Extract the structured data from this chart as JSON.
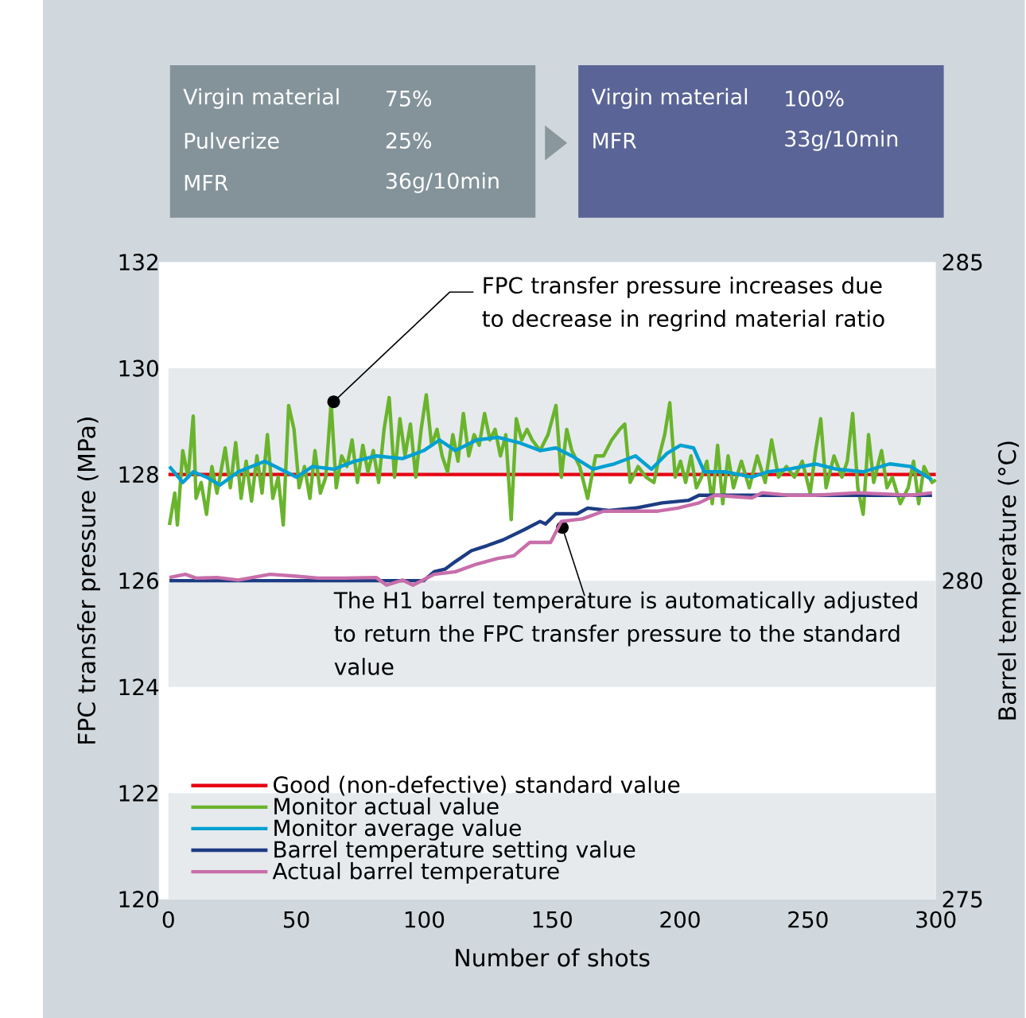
{
  "chart_data": {
    "type": "line",
    "xlabel": "Number of shots",
    "ylabel": "FPC transfer pressure (MPa)",
    "y2label": "Barrel temperature (°C)",
    "xlim": [
      0,
      300
    ],
    "xticks": [
      0,
      50,
      100,
      150,
      200,
      250,
      300
    ],
    "ylim": [
      120,
      132
    ],
    "yticks": [
      120,
      122,
      124,
      126,
      128,
      130,
      132
    ],
    "y2lim": [
      275,
      285
    ],
    "y2ticks": [
      275,
      280,
      285
    ],
    "legend": "bottom left",
    "bands": [
      {
        "axis": "y",
        "from": 120,
        "to": 122,
        "color": "#e6eaed"
      },
      {
        "axis": "y",
        "from": 124,
        "to": 126,
        "color": "#e6eaed"
      },
      {
        "axis": "y",
        "from": 128,
        "to": 130,
        "color": "#e6eaed"
      }
    ],
    "annotations": [
      "Virgin material",
      "75%",
      "Pulverize",
      "25%",
      "MFR",
      "36g/10min",
      "Virgin material",
      "100%",
      "MFR",
      "33g/10min",
      {
        "text": "FPC transfer pressure increases due to decrease in regrind material ratio",
        "x": 64.6,
        "y": 129.37
      },
      {
        "text": "The H1 barrel temperature is automatically adjusted to return the FPC transfer pressure to the standard value",
        "x": 154,
        "y": 127.0
      }
    ],
    "series": [
      {
        "name": "Good (non-defective) standard value",
        "color": "#e60012",
        "x": [
          0,
          300
        ],
        "values": [
          128,
          128
        ]
      },
      {
        "name": "Monitor actual value",
        "color": "#6ab42d",
        "x": [
          0.4,
          2.5,
          3.5,
          5.6,
          7.7,
          9.7,
          10.8,
          12.8,
          14.9,
          17,
          19,
          22.2,
          24.2,
          26.3,
          28.4,
          30.4,
          32.5,
          34.6,
          36.6,
          38.7,
          40.8,
          42.9,
          44.9,
          47,
          49.1,
          51.1,
          53.2,
          55.3,
          57.3,
          59.4,
          61.5,
          63.6,
          65.6,
          67.7,
          69.8,
          71.8,
          73.9,
          76,
          78,
          80.1,
          82.2,
          84.3,
          86.3,
          88.4,
          90.5,
          92.5,
          94.6,
          96.7,
          98.8,
          100.8,
          102.9,
          105,
          107,
          109.1,
          111.2,
          113.2,
          115.3,
          117.4,
          119.5,
          121.5,
          123.6,
          125.7,
          127.7,
          129.8,
          131.9,
          134,
          136,
          138.1,
          140.2,
          142.2,
          145.3,
          148.4,
          151.5,
          153.6,
          155.7,
          157.7,
          160.8,
          163.9,
          167,
          170.1,
          173.3,
          176.4,
          178.4,
          180.5,
          183.6,
          186.7,
          189.8,
          191.9,
          194,
          196,
          198.1,
          200.2,
          202.2,
          204.3,
          206.4,
          208.4,
          210.5,
          212.6,
          214.7,
          216.7,
          218.8,
          220.9,
          224,
          227.1,
          230.2,
          233.3,
          235.8,
          238.5,
          241.6,
          244.7,
          247.8,
          250.9,
          253,
          255,
          257.1,
          260.2,
          263.3,
          265.4,
          267.5,
          269.5,
          271.6,
          273.7,
          275.7,
          278.8,
          280.9,
          283,
          286.1,
          289.2,
          291.3,
          293.3,
          295.4,
          298.5,
          300
        ],
        "values": [
          127.05,
          127.65,
          127.05,
          128.45,
          127.95,
          129.1,
          127.55,
          127.85,
          127.25,
          128.15,
          127.65,
          128.5,
          127.75,
          128.6,
          127.55,
          128.25,
          127.5,
          128.35,
          127.65,
          128.75,
          127.55,
          127.95,
          127.05,
          129.3,
          128.85,
          127.75,
          128.15,
          127.55,
          128.45,
          127.65,
          127.95,
          129.35,
          127.75,
          128.35,
          128.15,
          128.65,
          127.85,
          128.55,
          128.05,
          128.45,
          127.85,
          128.85,
          129.45,
          127.95,
          129.05,
          128.35,
          128.95,
          127.95,
          128.85,
          129.5,
          128.55,
          128.85,
          128.35,
          128.05,
          128.75,
          128.25,
          129.15,
          128.35,
          128.75,
          128.55,
          129.15,
          128.65,
          128.85,
          128.35,
          128.75,
          127.15,
          129.05,
          128.65,
          128.85,
          128.65,
          128.45,
          128.75,
          129.3,
          127.95,
          128.85,
          128.45,
          128.15,
          127.55,
          128.35,
          128.35,
          128.65,
          128.85,
          128.95,
          127.85,
          128.15,
          127.95,
          127.85,
          128.35,
          128.75,
          129.35,
          127.95,
          128.25,
          127.85,
          128.35,
          127.75,
          127.95,
          128.25,
          127.45,
          128.55,
          127.45,
          128.35,
          127.75,
          128.25,
          127.75,
          128.35,
          127.85,
          128.65,
          127.95,
          128.15,
          127.95,
          128.25,
          127.65,
          128.45,
          129.05,
          127.75,
          128.35,
          127.95,
          128.25,
          129.15,
          127.75,
          127.25,
          128.75,
          127.85,
          128.45,
          127.75,
          127.95,
          127.45,
          127.75,
          128.25,
          127.45,
          128.15,
          127.85,
          127.9
        ]
      },
      {
        "name": "Monitor average value",
        "color": "#00a0d2",
        "x": [
          0.4,
          5.6,
          9.7,
          14.9,
          20.1,
          27.3,
          37.7,
          43.9,
          50.1,
          56.3,
          64.6,
          72.9,
          81.2,
          91.5,
          99.8,
          106,
          112.2,
          120.5,
          128.8,
          137,
          145.3,
          151.5,
          157.7,
          166,
          174.3,
          182.6,
          188.8,
          195,
          200.2,
          205.3,
          209.5,
          217.8,
          228.1,
          234.3,
          242.6,
          253,
          261.2,
          271.6,
          282,
          290.2,
          298.5
        ],
        "values": [
          128.15,
          127.85,
          128.05,
          127.95,
          127.8,
          128.05,
          128.25,
          128.1,
          127.95,
          128.15,
          128.1,
          128.25,
          128.35,
          128.3,
          128.45,
          128.65,
          128.45,
          128.65,
          128.7,
          128.6,
          128.45,
          128.5,
          128.35,
          128.1,
          128.2,
          128.35,
          128.1,
          128.4,
          128.55,
          128.5,
          128.05,
          128.05,
          127.95,
          128.05,
          128.1,
          128.2,
          128.1,
          128.05,
          128.2,
          128.15,
          127.9
        ]
      },
      {
        "name": "Barrel temperature setting value",
        "color": "#1d3c84",
        "axis": "y2",
        "x": [
          0.4,
          50,
          99.8,
          103.9,
          108.1,
          112.2,
          118.4,
          124.6,
          130.8,
          139.1,
          145.3,
          147.4,
          151.5,
          159.8,
          163.9,
          172.2,
          182.6,
          192.9,
          203.3,
          207.4,
          298.5
        ],
        "values": [
          280.0,
          280.0,
          280.0,
          280.14,
          280.18,
          280.3,
          280.47,
          280.55,
          280.64,
          280.8,
          280.93,
          280.89,
          281.05,
          281.05,
          281.14,
          281.1,
          281.14,
          281.22,
          281.26,
          281.34,
          281.34
        ]
      },
      {
        "name": "Actual barrel temperature",
        "color": "#c86eaa",
        "axis": "y2",
        "x": [
          0.4,
          6.6,
          10.8,
          19,
          27.3,
          39.7,
          50.1,
          58.4,
          68.7,
          81.2,
          85.3,
          91.5,
          95.6,
          103.9,
          112.2,
          120.5,
          128.8,
          135,
          141.2,
          149.4,
          153.6,
          161.9,
          170.1,
          180.5,
          190.8,
          199.1,
          207.4,
          213.6,
          228.1,
          232.2,
          242.6,
          253,
          269.5,
          290.2,
          298.5
        ],
        "values": [
          280.05,
          280.1,
          280.04,
          280.05,
          280.01,
          280.1,
          280.07,
          280.04,
          280.04,
          280.05,
          279.93,
          280.01,
          279.93,
          280.1,
          280.14,
          280.26,
          280.35,
          280.39,
          280.6,
          280.6,
          280.93,
          280.97,
          281.09,
          281.09,
          281.09,
          281.14,
          281.22,
          281.34,
          281.3,
          281.38,
          281.34,
          281.34,
          281.38,
          281.34,
          281.38
        ]
      }
    ]
  }
}
